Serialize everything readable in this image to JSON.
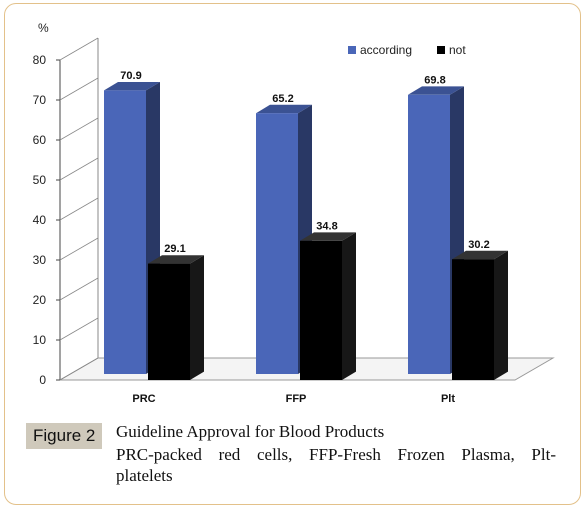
{
  "figure": {
    "label": "Figure 2",
    "title": "Guideline Approval for Blood Products",
    "description_line1": "PRC-packed red cells, FFP-Fresh Frozen Plasma, Plt-",
    "description_line2": "platelets"
  },
  "chart_data": {
    "type": "bar",
    "subtype": "3d-clustered",
    "categories": [
      "PRC",
      "FFP",
      "Plt"
    ],
    "series": [
      {
        "name": "according",
        "values": [
          70.9,
          65.2,
          69.8
        ],
        "color": "#4a66b8"
      },
      {
        "name": "not",
        "values": [
          29.1,
          34.8,
          30.2
        ],
        "color": "#000000"
      }
    ],
    "ylabel": "%",
    "ylim": [
      0,
      80
    ],
    "yticks": [
      0,
      10,
      20,
      30,
      40,
      50,
      60,
      70,
      80
    ],
    "legend": "top-right",
    "grid": false
  }
}
